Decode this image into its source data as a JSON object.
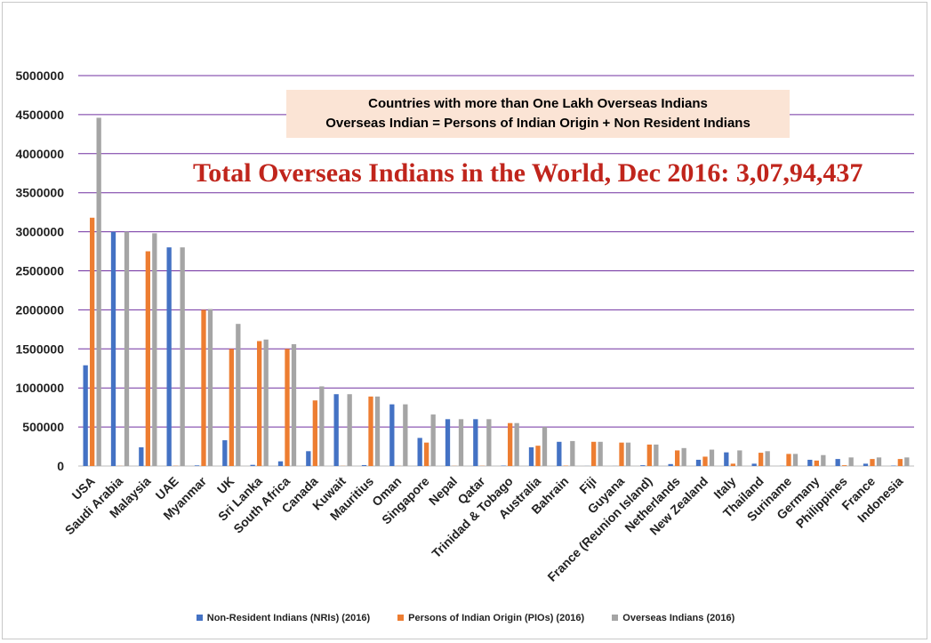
{
  "chart_data": {
    "type": "bar",
    "title_line1": "Countries with more than One Lakh Overseas Indians",
    "title_line2": "Overseas Indian = Persons of Indian Origin + Non Resident Indians",
    "headline": "Total Overseas Indians in the World, Dec 2016: 3,07,94,437",
    "ylim": [
      0,
      5000000
    ],
    "yticks": [
      0,
      500000,
      1000000,
      1500000,
      2000000,
      2500000,
      3000000,
      3500000,
      4000000,
      4500000,
      5000000
    ],
    "grid": true,
    "legend_position": "bottom",
    "categories": [
      "USA",
      "Saudi Arabia",
      "Malaysia",
      "UAE",
      "Myanmar",
      "UK",
      "Sri Lanka",
      "South Africa",
      "Canada",
      "Kuwait",
      "Mauritius",
      "Oman",
      "Singapore",
      "Nepal",
      "Qatar",
      "Trinidad & Tobago",
      "Australia",
      "Bahrain",
      "Fiji",
      "Guyana",
      "France (Reunion Island)",
      "Netherlands",
      "New Zealand",
      "Italy",
      "Thailand",
      "Suriname",
      "Germany",
      "Philippines",
      "France",
      "Indonesia"
    ],
    "series": [
      {
        "name": "Non-Resident Indians (NRIs) (2016)",
        "color": "#4472c4",
        "values": [
          1290000,
          3000000,
          240000,
          2800000,
          8000,
          330000,
          15000,
          60000,
          190000,
          920000,
          12000,
          790000,
          360000,
          600000,
          600000,
          5000,
          240000,
          310000,
          1000,
          1000,
          10000,
          25000,
          80000,
          175000,
          30000,
          2000,
          80000,
          90000,
          30000,
          5000
        ]
      },
      {
        "name": "Persons of Indian Origin (PIOs) (2016)",
        "color": "#ed7d31",
        "values": [
          3180000,
          2000,
          2750000,
          3000,
          2000000,
          1500000,
          1600000,
          1500000,
          840000,
          2000,
          890000,
          2000,
          300000,
          2000,
          3000,
          550000,
          260000,
          5000,
          310000,
          300000,
          275000,
          200000,
          120000,
          30000,
          170000,
          155000,
          70000,
          10000,
          90000,
          90000
        ]
      },
      {
        "name": "Overseas Indians (2016)",
        "color": "#a5a5a5",
        "values": [
          4460000,
          3000000,
          2980000,
          2800000,
          2010000,
          1820000,
          1620000,
          1560000,
          1020000,
          920000,
          890000,
          790000,
          660000,
          600000,
          600000,
          550000,
          500000,
          320000,
          310000,
          300000,
          275000,
          230000,
          210000,
          200000,
          190000,
          155000,
          140000,
          110000,
          110000,
          110000
        ]
      }
    ]
  }
}
